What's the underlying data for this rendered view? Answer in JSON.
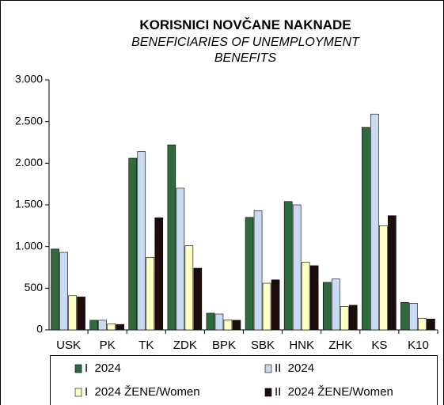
{
  "chart_data": {
    "type": "bar",
    "title": "KORISNICI NOVČANE NAKNADE",
    "subtitle": "BENEFICIARIES OF UNEMPLOYMENT BENEFITS",
    "categories": [
      "USK",
      "PK",
      "TK",
      "ZDK",
      "BPK",
      "SBK",
      "HNK",
      "ZHK",
      "KS",
      "K10"
    ],
    "series": [
      {
        "name": "I  2024",
        "color": "#2f6a3c",
        "values": [
          970,
          115,
          2060,
          2220,
          200,
          1350,
          1540,
          570,
          2430,
          330
        ]
      },
      {
        "name": "II  2024",
        "color": "#c9daf2",
        "values": [
          930,
          115,
          2140,
          1700,
          190,
          1430,
          1500,
          610,
          2590,
          320
        ]
      },
      {
        "name": "I  2024 ŽENE/Women",
        "color": "#ffffc4",
        "values": [
          410,
          70,
          870,
          1010,
          120,
          560,
          810,
          280,
          1250,
          140
        ]
      },
      {
        "name": "II  2024 ŽENE/Women",
        "color": "#1c0c0c",
        "values": [
          395,
          65,
          1345,
          740,
          115,
          600,
          770,
          295,
          1370,
          130
        ]
      }
    ],
    "ylim": [
      0,
      3000
    ],
    "yticks": [
      0,
      {
        "value": 500,
        "label": "500"
      },
      {
        "value": 1000,
        "label": "1.000"
      },
      {
        "value": 1500,
        "label": "1.500"
      },
      {
        "value": 2000,
        "label": "2.000"
      },
      {
        "value": 2500,
        "label": "2.500"
      },
      {
        "value": 3000,
        "label": "3.000"
      }
    ],
    "legend": "bottom"
  }
}
